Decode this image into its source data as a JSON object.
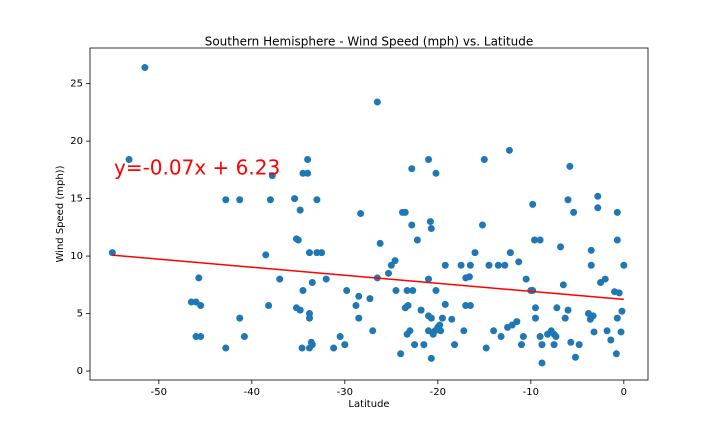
{
  "chart_data": {
    "type": "scatter",
    "title": "Southern Hemisphere - Wind Speed (mph) vs. Latitude",
    "x_label": "Latitude",
    "y_label": "Wind Speed (mph))",
    "color": "#1f77b4",
    "x": [
      -55,
      -53.2,
      -51.5,
      -46.5,
      -46,
      -46,
      -45.7,
      -45.5,
      -45.5,
      -42.8,
      -42.8,
      -41.3,
      -41.3,
      -40.8,
      -38.5,
      -38.2,
      -38,
      -37.8,
      -37,
      -35.4,
      -35.2,
      -35,
      -35.2,
      -34.8,
      -34.8,
      -34.5,
      -34.6,
      -34.5,
      -34,
      -34,
      -33.8,
      -33.8,
      -33.8,
      -33.5,
      -33.5,
      -33.8,
      -33.6,
      -33,
      -33,
      -32.5,
      -32,
      -31.2,
      -30.5,
      -30,
      -29.8,
      -28.8,
      -28.5,
      -28.5,
      -28.3,
      -27.3,
      -27,
      -26.5,
      -26.5,
      -26.2,
      -25.3,
      -25,
      -24.6,
      -24.5,
      -24,
      -23.8,
      -23.5,
      -23.5,
      -23.2,
      -23.3,
      -23.3,
      -23,
      -22.8,
      -22.8,
      -22.7,
      -22.5,
      -22.2,
      -21.8,
      -21.5,
      -21,
      -21,
      -21,
      -21,
      -20.8,
      -20.7,
      -20.7,
      -20.7,
      -20.5,
      -20.3,
      -20.2,
      -20.2,
      -20,
      -19.8,
      -19.7,
      -19.5,
      -19.2,
      -19.2,
      -18.5,
      -18.2,
      -17.5,
      -17.2,
      -17,
      -17,
      -16.6,
      -16.5,
      -16.5,
      -16,
      -15.2,
      -15,
      -14.8,
      -14.5,
      -14,
      -13.5,
      -13.2,
      -12.8,
      -12.5,
      -12.3,
      -12.2,
      -12,
      -11.5,
      -11.3,
      -11,
      -10.8,
      -10.5,
      -10,
      -9.8,
      -9.6,
      -9.8,
      -9.5,
      -9.5,
      -9,
      -9,
      -8.8,
      -8.8,
      -8.2,
      -7.8,
      -7.5,
      -7.5,
      -7.2,
      -7.3,
      -6.8,
      -6.5,
      -6.3,
      -6,
      -6,
      -5.8,
      -5.7,
      -5.4,
      -5.2,
      -4.8,
      -3.8,
      -3.6,
      -3.5,
      -3.5,
      -3.3,
      -3.2,
      -2.8,
      -2.8,
      -2.5,
      -2,
      -1.8,
      -1.4,
      -1,
      -0.8,
      -0.7,
      -0.7,
      -0.7,
      -0.5,
      -0.3,
      -0.2,
      0
    ],
    "values": [
      10.3,
      18.4,
      26.4,
      6,
      3,
      6,
      8.1,
      5.7,
      3,
      14.9,
      2,
      14.9,
      4.6,
      3,
      10.1,
      5.7,
      14.9,
      17,
      8,
      15,
      11.5,
      11.4,
      5.5,
      5.3,
      14,
      17.2,
      2,
      7,
      18.4,
      17.2,
      10.3,
      4.6,
      5,
      7.7,
      2.3,
      2,
      2.5,
      14.9,
      10.3,
      10.3,
      8,
      2,
      3,
      2.3,
      7,
      5.7,
      6.5,
      4.6,
      13.7,
      6.3,
      3.5,
      8.1,
      23.4,
      11.1,
      8.5,
      9.2,
      9.6,
      7,
      1.5,
      13.8,
      13.8,
      5.5,
      5.7,
      7,
      3.2,
      3.5,
      17.6,
      12.7,
      7,
      2.3,
      11.4,
      5.3,
      2.3,
      18.4,
      8,
      4.8,
      3.5,
      13,
      12.4,
      4.6,
      1.1,
      3.2,
      3.5,
      17.2,
      7,
      3.8,
      4,
      3.5,
      4.6,
      9.2,
      5.8,
      4.5,
      2.3,
      9.2,
      3.5,
      5.7,
      8.1,
      8.2,
      9.2,
      5.7,
      10.3,
      12.7,
      18.4,
      2,
      9.2,
      3.5,
      9.2,
      3,
      9.2,
      3.8,
      19.2,
      10.3,
      4,
      4.3,
      9.5,
      2.3,
      3,
      8,
      7,
      14.5,
      11.4,
      7,
      5.5,
      4.6,
      11.4,
      3,
      2.3,
      0.7,
      3.2,
      3.5,
      3.2,
      2.3,
      5.5,
      3,
      10.8,
      7.5,
      4.6,
      5.3,
      14.9,
      17.8,
      2.5,
      13.8,
      1.2,
      2.3,
      5,
      4.5,
      9.2,
      10.5,
      4.8,
      3.4,
      15.2,
      14.2,
      7.7,
      8,
      3.5,
      2.7,
      6.9,
      1.5,
      13.8,
      11.4,
      4.6,
      6.8,
      3.4,
      5.2,
      9.2
    ],
    "regression": {
      "x": [
        -55,
        0
      ],
      "values": [
        10.08,
        6.23
      ],
      "color": "#ff0000"
    },
    "annotation": "y=-0.07x + 6.23",
    "annotation_color": "#ff0000",
    "xlim": [
      -57.4,
      2.6
    ],
    "ylim": [
      -0.78,
      28.1
    ],
    "xticks": [
      -50,
      -40,
      -30,
      -20,
      -10,
      0
    ],
    "yticks": [
      0,
      5,
      10,
      15,
      20,
      25
    ]
  }
}
